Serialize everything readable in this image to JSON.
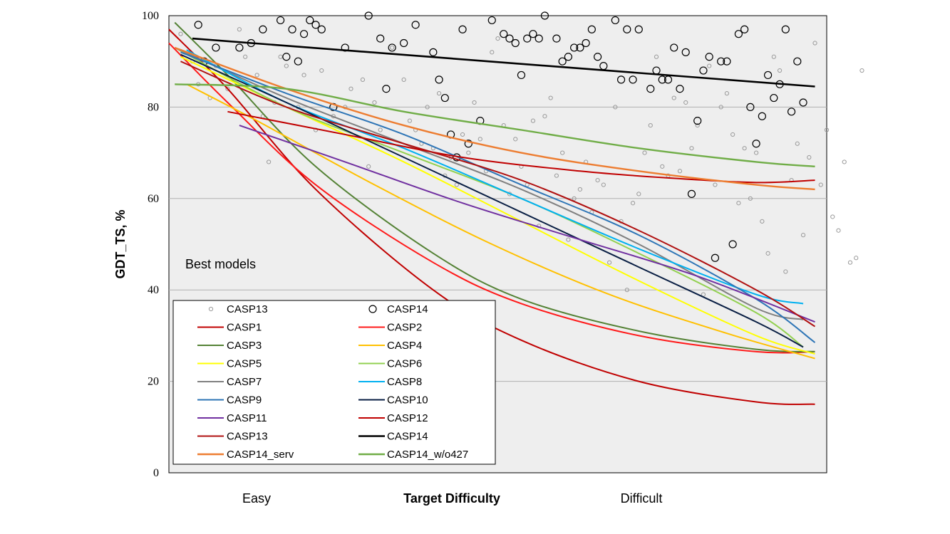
{
  "chart_data": {
    "type": "scatter",
    "ylabel": "GDT_TS, %",
    "xlabel": "Target Difficulty",
    "x_category_labels": [
      "Easy",
      "Difficult"
    ],
    "ylim": [
      0,
      100
    ],
    "yticks": [
      "0",
      "20",
      "40",
      "60",
      "80",
      "100"
    ],
    "grid": true,
    "annotation": "Best models",
    "legend_position": "bottom-left",
    "scatter_series": [
      {
        "name": "CASP13",
        "marker": "small-circle",
        "color": "#9a9a9a",
        "points": [
          [
            2,
            96
          ],
          [
            4,
            90
          ],
          [
            5,
            85
          ],
          [
            7,
            82
          ],
          [
            8,
            89
          ],
          [
            10,
            84
          ],
          [
            12,
            97
          ],
          [
            13,
            91
          ],
          [
            15,
            87
          ],
          [
            16,
            78
          ],
          [
            17,
            68
          ],
          [
            18,
            81
          ],
          [
            19,
            91
          ],
          [
            20,
            89
          ],
          [
            22,
            80
          ],
          [
            23,
            87
          ],
          [
            25,
            75
          ],
          [
            26,
            88
          ],
          [
            28,
            78
          ],
          [
            30,
            80
          ],
          [
            31,
            84
          ],
          [
            33,
            86
          ],
          [
            34,
            67
          ],
          [
            35,
            81
          ],
          [
            36,
            75
          ],
          [
            38,
            93
          ],
          [
            40,
            86
          ],
          [
            41,
            77
          ],
          [
            42,
            75
          ],
          [
            43,
            72
          ],
          [
            44,
            80
          ],
          [
            45,
            71
          ],
          [
            46,
            83
          ],
          [
            47,
            65
          ],
          [
            48,
            69
          ],
          [
            49,
            63
          ],
          [
            50,
            74
          ],
          [
            51,
            70
          ],
          [
            52,
            81
          ],
          [
            53,
            73
          ],
          [
            54,
            66
          ],
          [
            55,
            92
          ],
          [
            56,
            95
          ],
          [
            57,
            76
          ],
          [
            58,
            61
          ],
          [
            59,
            73
          ],
          [
            60,
            67
          ],
          [
            61,
            63
          ],
          [
            62,
            77
          ],
          [
            63,
            54
          ],
          [
            64,
            78
          ],
          [
            65,
            82
          ],
          [
            66,
            65
          ],
          [
            67,
            70
          ],
          [
            68,
            51
          ],
          [
            69,
            60
          ],
          [
            70,
            62
          ],
          [
            71,
            68
          ],
          [
            72,
            57
          ],
          [
            73,
            64
          ],
          [
            74,
            63
          ],
          [
            75,
            46
          ],
          [
            76,
            80
          ],
          [
            77,
            55
          ],
          [
            78,
            40
          ],
          [
            79,
            59
          ],
          [
            80,
            61
          ],
          [
            81,
            70
          ],
          [
            82,
            76
          ],
          [
            83,
            91
          ],
          [
            84,
            67
          ],
          [
            85,
            65
          ],
          [
            86,
            82
          ],
          [
            87,
            66
          ],
          [
            88,
            81
          ],
          [
            89,
            71
          ],
          [
            90,
            76
          ],
          [
            91,
            39
          ],
          [
            92,
            89
          ],
          [
            93,
            63
          ],
          [
            94,
            80
          ],
          [
            95,
            83
          ],
          [
            96,
            74
          ],
          [
            97,
            59
          ],
          [
            98,
            71
          ],
          [
            99,
            60
          ],
          [
            100,
            70
          ],
          [
            101,
            55
          ],
          [
            102,
            48
          ],
          [
            103,
            91
          ],
          [
            104,
            88
          ],
          [
            105,
            44
          ],
          [
            106,
            64
          ],
          [
            107,
            72
          ],
          [
            108,
            52
          ],
          [
            109,
            69
          ],
          [
            110,
            94
          ],
          [
            111,
            63
          ],
          [
            112,
            75
          ],
          [
            113,
            56
          ],
          [
            114,
            53
          ],
          [
            115,
            68
          ],
          [
            116,
            46
          ],
          [
            117,
            47
          ],
          [
            118,
            88
          ]
        ]
      },
      {
        "name": "CASP14",
        "marker": "large-circle",
        "color": "#000000",
        "points": [
          [
            5,
            98
          ],
          [
            6,
            90
          ],
          [
            8,
            93
          ],
          [
            12,
            93
          ],
          [
            14,
            94
          ],
          [
            16,
            97
          ],
          [
            19,
            99
          ],
          [
            20,
            91
          ],
          [
            21,
            97
          ],
          [
            22,
            90
          ],
          [
            23,
            96
          ],
          [
            24,
            99
          ],
          [
            25,
            98
          ],
          [
            26,
            97
          ],
          [
            28,
            80
          ],
          [
            30,
            93
          ],
          [
            34,
            100
          ],
          [
            36,
            95
          ],
          [
            37,
            84
          ],
          [
            38,
            93
          ],
          [
            40,
            94
          ],
          [
            42,
            98
          ],
          [
            45,
            92
          ],
          [
            46,
            86
          ],
          [
            47,
            82
          ],
          [
            48,
            74
          ],
          [
            49,
            69
          ],
          [
            50,
            97
          ],
          [
            51,
            72
          ],
          [
            53,
            77
          ],
          [
            55,
            99
          ],
          [
            57,
            96
          ],
          [
            58,
            95
          ],
          [
            59,
            94
          ],
          [
            60,
            87
          ],
          [
            61,
            95
          ],
          [
            62,
            96
          ],
          [
            63,
            95
          ],
          [
            64,
            100
          ],
          [
            66,
            95
          ],
          [
            67,
            90
          ],
          [
            68,
            91
          ],
          [
            69,
            93
          ],
          [
            70,
            93
          ],
          [
            71,
            94
          ],
          [
            72,
            97
          ],
          [
            73,
            91
          ],
          [
            74,
            89
          ],
          [
            76,
            99
          ],
          [
            77,
            86
          ],
          [
            78,
            97
          ],
          [
            79,
            86
          ],
          [
            80,
            97
          ],
          [
            82,
            84
          ],
          [
            83,
            88
          ],
          [
            84,
            86
          ],
          [
            85,
            86
          ],
          [
            86,
            93
          ],
          [
            87,
            84
          ],
          [
            88,
            92
          ],
          [
            89,
            61
          ],
          [
            90,
            77
          ],
          [
            91,
            88
          ],
          [
            92,
            91
          ],
          [
            93,
            47
          ],
          [
            94,
            90
          ],
          [
            95,
            90
          ],
          [
            96,
            50
          ],
          [
            97,
            96
          ],
          [
            98,
            97
          ],
          [
            99,
            80
          ],
          [
            100,
            72
          ],
          [
            101,
            78
          ],
          [
            102,
            87
          ],
          [
            103,
            82
          ],
          [
            104,
            85
          ],
          [
            105,
            97
          ],
          [
            106,
            79
          ],
          [
            107,
            90
          ],
          [
            108,
            81
          ]
        ]
      }
    ],
    "trend_series": [
      {
        "name": "CASP1",
        "color": "#c00000",
        "width": 2,
        "points": [
          [
            0,
            97
          ],
          [
            10,
            84
          ],
          [
            25,
            62
          ],
          [
            45,
            40
          ],
          [
            60,
            29
          ],
          [
            80,
            20
          ],
          [
            100,
            15.5
          ],
          [
            110,
            15
          ]
        ]
      },
      {
        "name": "CASP2",
        "color": "#ff1a1a",
        "width": 2,
        "points": [
          [
            0,
            94
          ],
          [
            10,
            81
          ],
          [
            25,
            63
          ],
          [
            45,
            46
          ],
          [
            60,
            37
          ],
          [
            80,
            30
          ],
          [
            100,
            26.5
          ],
          [
            110,
            26.5
          ]
        ]
      },
      {
        "name": "CASP3",
        "color": "#548235",
        "width": 2,
        "points": [
          [
            1,
            98.5
          ],
          [
            10,
            87
          ],
          [
            25,
            67
          ],
          [
            45,
            48
          ],
          [
            60,
            38
          ],
          [
            80,
            31
          ],
          [
            100,
            27
          ],
          [
            110,
            26.5
          ]
        ]
      },
      {
        "name": "CASP4",
        "color": "#ffc000",
        "width": 2,
        "points": [
          [
            3,
            85
          ],
          [
            15,
            77
          ],
          [
            35,
            63
          ],
          [
            55,
            50
          ],
          [
            75,
            39
          ],
          [
            95,
            30.5
          ],
          [
            110,
            25
          ]
        ]
      },
      {
        "name": "CASP5",
        "color": "#ffff00",
        "width": 2,
        "points": [
          [
            2,
            91
          ],
          [
            20,
            80
          ],
          [
            40,
            68
          ],
          [
            60,
            55
          ],
          [
            80,
            42
          ],
          [
            100,
            30
          ],
          [
            110,
            26
          ]
        ]
      },
      {
        "name": "CASP6",
        "color": "#92d050",
        "width": 2,
        "points": [
          [
            1,
            93
          ],
          [
            20,
            80
          ],
          [
            40,
            70
          ],
          [
            60,
            60
          ],
          [
            80,
            48
          ],
          [
            100,
            35
          ],
          [
            108,
            27.5
          ]
        ]
      },
      {
        "name": "CASP7",
        "color": "#808080",
        "width": 2,
        "points": [
          [
            1,
            93
          ],
          [
            20,
            82
          ],
          [
            40,
            72
          ],
          [
            60,
            62
          ],
          [
            80,
            50
          ],
          [
            100,
            36
          ],
          [
            108,
            33.5
          ]
        ]
      },
      {
        "name": "CASP8",
        "color": "#00b0f0",
        "width": 2,
        "points": [
          [
            3,
            92.5
          ],
          [
            20,
            81
          ],
          [
            40,
            71
          ],
          [
            60,
            60
          ],
          [
            80,
            49
          ],
          [
            100,
            39
          ],
          [
            108,
            37
          ]
        ]
      },
      {
        "name": "CASP9",
        "color": "#2e75b6",
        "width": 2,
        "points": [
          [
            2,
            92
          ],
          [
            20,
            83
          ],
          [
            40,
            74
          ],
          [
            60,
            63
          ],
          [
            80,
            52
          ],
          [
            100,
            38
          ],
          [
            110,
            28.5
          ]
        ]
      },
      {
        "name": "CASP10",
        "color": "#0a1f44",
        "width": 2,
        "points": [
          [
            2,
            91.5
          ],
          [
            20,
            81
          ],
          [
            40,
            69
          ],
          [
            60,
            57
          ],
          [
            80,
            45
          ],
          [
            100,
            33
          ],
          [
            108,
            27.5
          ]
        ]
      },
      {
        "name": "CASP11",
        "color": "#7030a0",
        "width": 2,
        "points": [
          [
            12,
            76
          ],
          [
            30,
            68
          ],
          [
            50,
            59
          ],
          [
            70,
            51
          ],
          [
            90,
            43
          ],
          [
            110,
            33
          ]
        ]
      },
      {
        "name": "CASP12",
        "color": "#c00000",
        "width": 2,
        "points": [
          [
            10,
            79
          ],
          [
            30,
            74
          ],
          [
            50,
            69
          ],
          [
            70,
            66
          ],
          [
            85,
            64.5
          ],
          [
            100,
            63.5
          ],
          [
            110,
            64
          ]
        ]
      },
      {
        "name": "CASP13",
        "color": "#b01010",
        "width": 2,
        "points": [
          [
            2,
            90
          ],
          [
            20,
            80
          ],
          [
            40,
            72
          ],
          [
            60,
            64
          ],
          [
            80,
            53
          ],
          [
            100,
            40
          ],
          [
            110,
            32
          ]
        ]
      },
      {
        "name": "CASP14",
        "color": "#000000",
        "width": 2.6,
        "points": [
          [
            4,
            95
          ],
          [
            110,
            84.5
          ]
        ]
      },
      {
        "name": "CASP14_serv",
        "color": "#ed7d31",
        "width": 2.4,
        "points": [
          [
            1,
            93
          ],
          [
            20,
            84
          ],
          [
            40,
            76
          ],
          [
            60,
            70
          ],
          [
            80,
            66
          ],
          [
            100,
            63
          ],
          [
            110,
            62
          ]
        ]
      },
      {
        "name": "CASP14_w/o427",
        "color": "#70ad47",
        "width": 2.4,
        "points": [
          [
            1,
            85
          ],
          [
            20,
            84
          ],
          [
            40,
            79
          ],
          [
            60,
            75
          ],
          [
            80,
            71
          ],
          [
            100,
            68
          ],
          [
            110,
            67
          ]
        ]
      }
    ]
  }
}
